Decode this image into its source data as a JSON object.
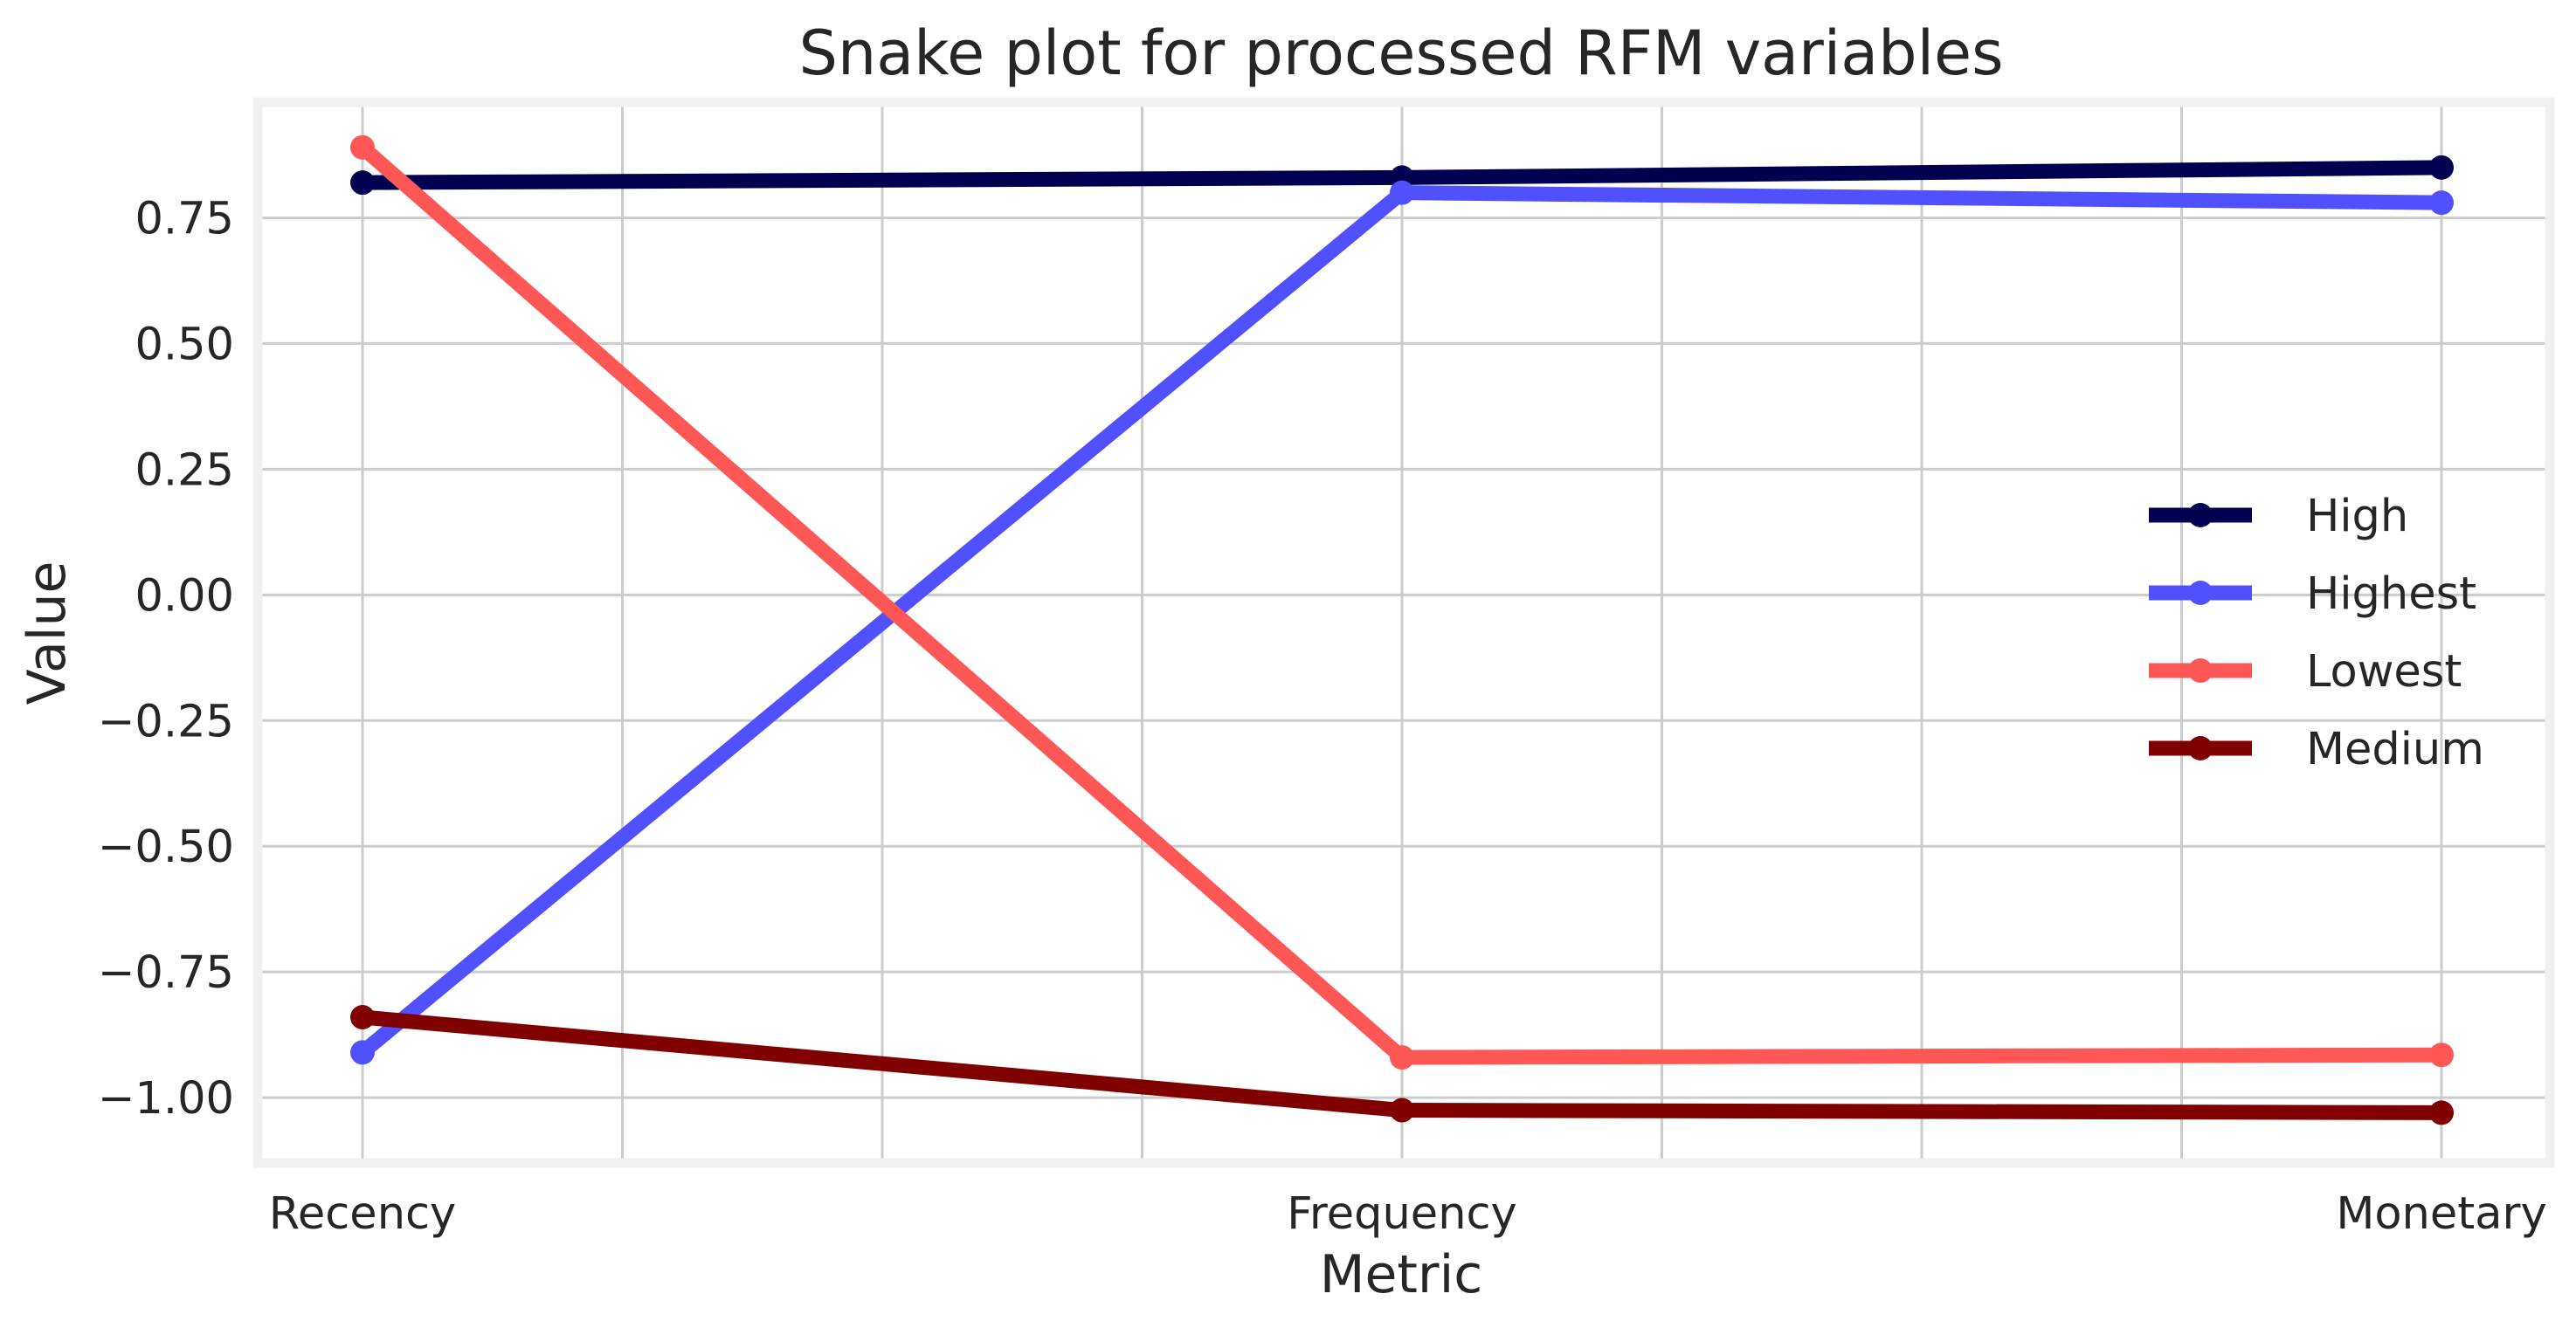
{
  "chart_data": {
    "type": "line",
    "title": "Snake plot for processed RFM variables",
    "xlabel": "Metric",
    "ylabel": "Value",
    "categories": [
      "Recency",
      "Frequency",
      "Monetary"
    ],
    "ylim": [
      -1.13,
      0.98
    ],
    "yticks": [
      0.75,
      0.5,
      0.25,
      0.0,
      -0.25,
      -0.5,
      -0.75,
      -1.0
    ],
    "ytick_labels": [
      "0.75",
      "0.50",
      "0.25",
      "0.00",
      "−0.25",
      "−0.50",
      "−0.75",
      "−1.00"
    ],
    "grid": true,
    "legend_position": "right",
    "series": [
      {
        "name": "High",
        "color": "#000050",
        "values": [
          0.82,
          0.83,
          0.85
        ]
      },
      {
        "name": "Highest",
        "color": "#5050ff",
        "values": [
          -0.91,
          0.8,
          0.78
        ]
      },
      {
        "name": "Lowest",
        "color": "#ff5656",
        "values": [
          0.89,
          -0.92,
          -0.915
        ]
      },
      {
        "name": "Medium",
        "color": "#800000",
        "values": [
          -0.84,
          -1.025,
          -1.03
        ]
      }
    ]
  }
}
